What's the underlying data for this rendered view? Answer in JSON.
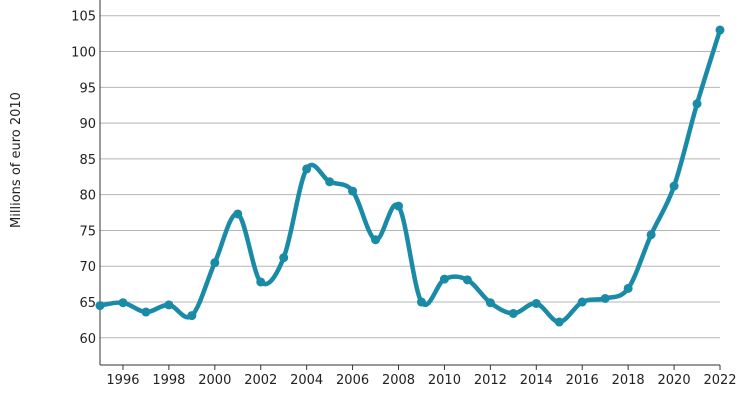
{
  "chart_data": {
    "type": "line",
    "y_label": "Millions of euro 2010",
    "x": [
      1995,
      1996,
      1997,
      1998,
      1999,
      2000,
      2001,
      2002,
      2003,
      2004,
      2005,
      2006,
      2007,
      2008,
      2009,
      2010,
      2011,
      2012,
      2013,
      2014,
      2015,
      2016,
      2017,
      2018,
      2019,
      2020,
      2021,
      2022
    ],
    "series": [
      {
        "color": "#1a8ba6",
        "values": [
          64.5,
          64.9,
          63.6,
          64.6,
          63.1,
          70.5,
          77.3,
          67.8,
          71.2,
          83.6,
          81.8,
          80.5,
          73.7,
          78.4,
          65.0,
          68.2,
          68.1,
          64.9,
          63.4,
          64.8,
          62.2,
          65.0,
          65.5,
          66.9,
          74.4,
          81.2,
          92.7,
          103.0
        ]
      }
    ],
    "xlim": [
      1995,
      2022
    ],
    "xticks": [
      1996,
      1998,
      2000,
      2002,
      2004,
      2006,
      2008,
      2010,
      2012,
      2014,
      2016,
      2018,
      2020,
      2022
    ],
    "ylim": [
      56.2,
      107.2
    ],
    "yticks": [
      60,
      65,
      70,
      75,
      80,
      85,
      90,
      95,
      100,
      105
    ],
    "grid": true
  }
}
